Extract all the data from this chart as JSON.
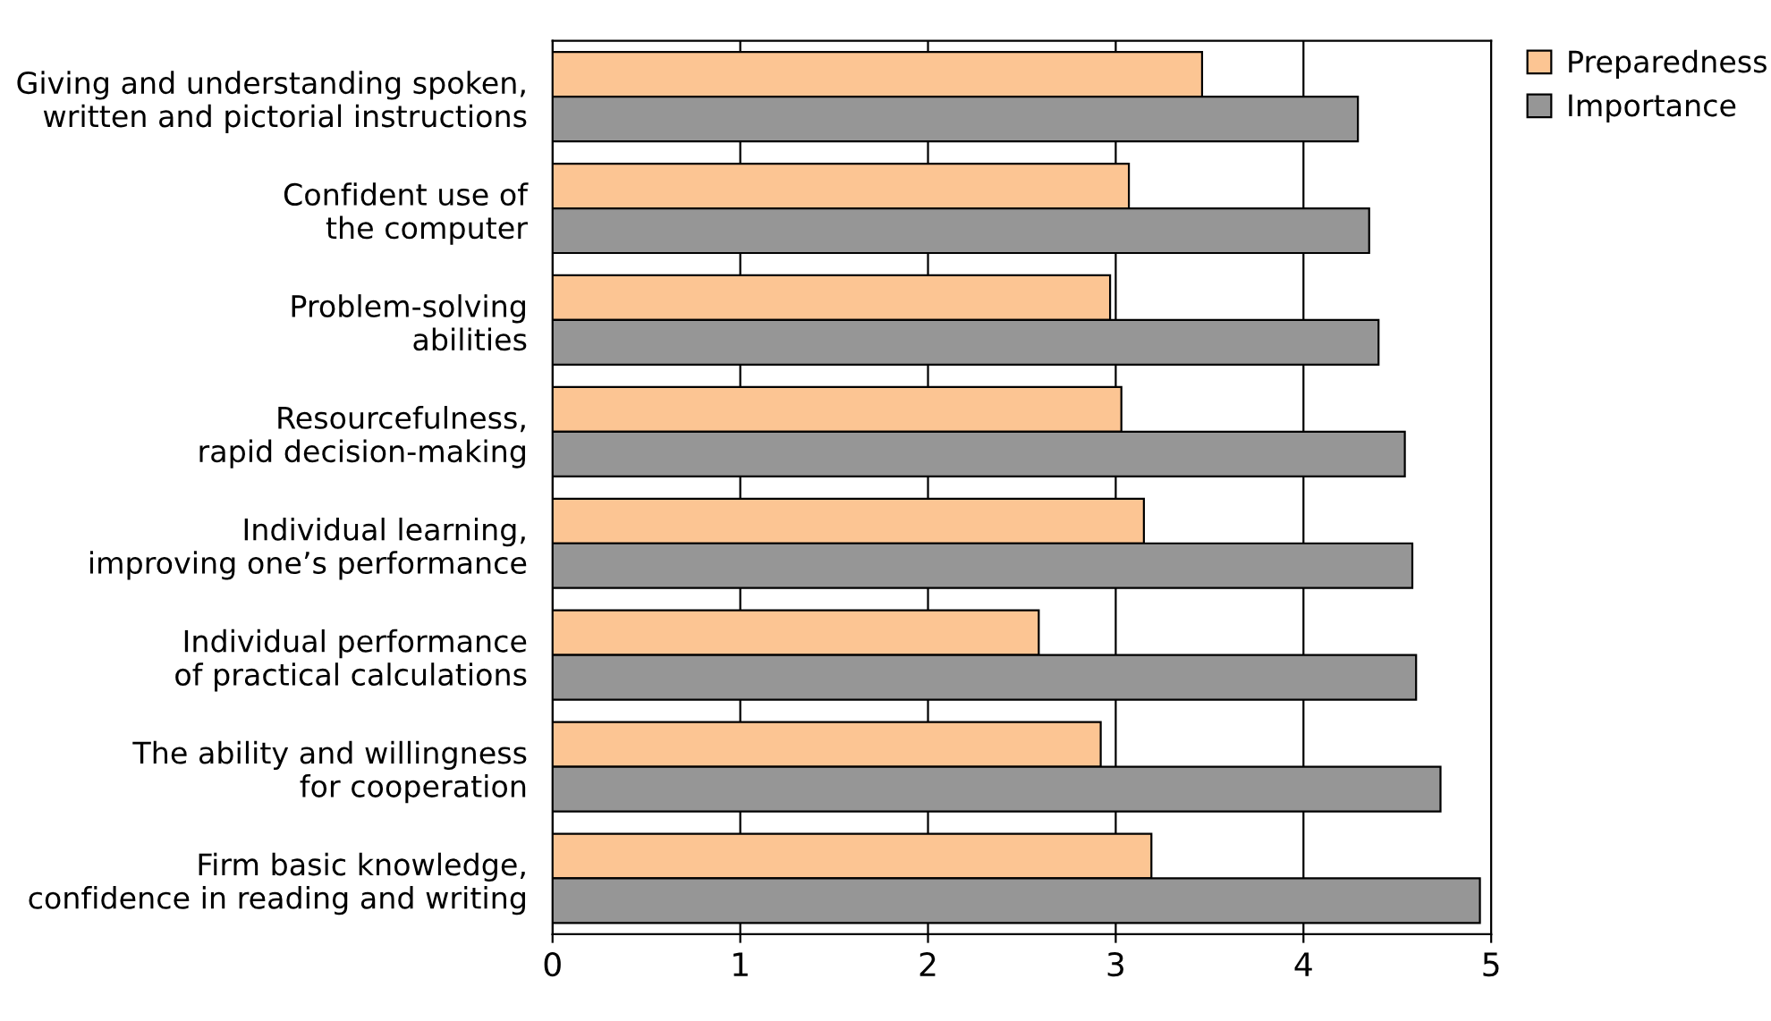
{
  "chart_data": {
    "type": "bar",
    "orientation": "horizontal",
    "categories": [
      "Giving and understanding spoken,\nwritten and pictorial instructions",
      "Confident use of\nthe computer",
      "Problem-solving\nabilities",
      "Resourcefulness,\nrapid decision-making",
      "Individual learning,\nimproving one’s performance",
      "Individual performance\nof practical calculations",
      "The ability and willingness\nfor cooperation",
      "Firm basic knowledge,\nconfidence in reading and writing"
    ],
    "series": [
      {
        "name": "Preparedness",
        "color": "#fcc593",
        "values": [
          3.46,
          3.07,
          2.97,
          3.03,
          3.15,
          2.59,
          2.92,
          3.19
        ]
      },
      {
        "name": "Importance",
        "color": "#969696",
        "values": [
          4.29,
          4.35,
          4.4,
          4.54,
          4.58,
          4.6,
          4.73,
          4.94
        ]
      }
    ],
    "xlim": [
      0,
      5
    ],
    "xticks": [
      0,
      1,
      2,
      3,
      4,
      5
    ],
    "grid": "x",
    "legend": "top right"
  }
}
